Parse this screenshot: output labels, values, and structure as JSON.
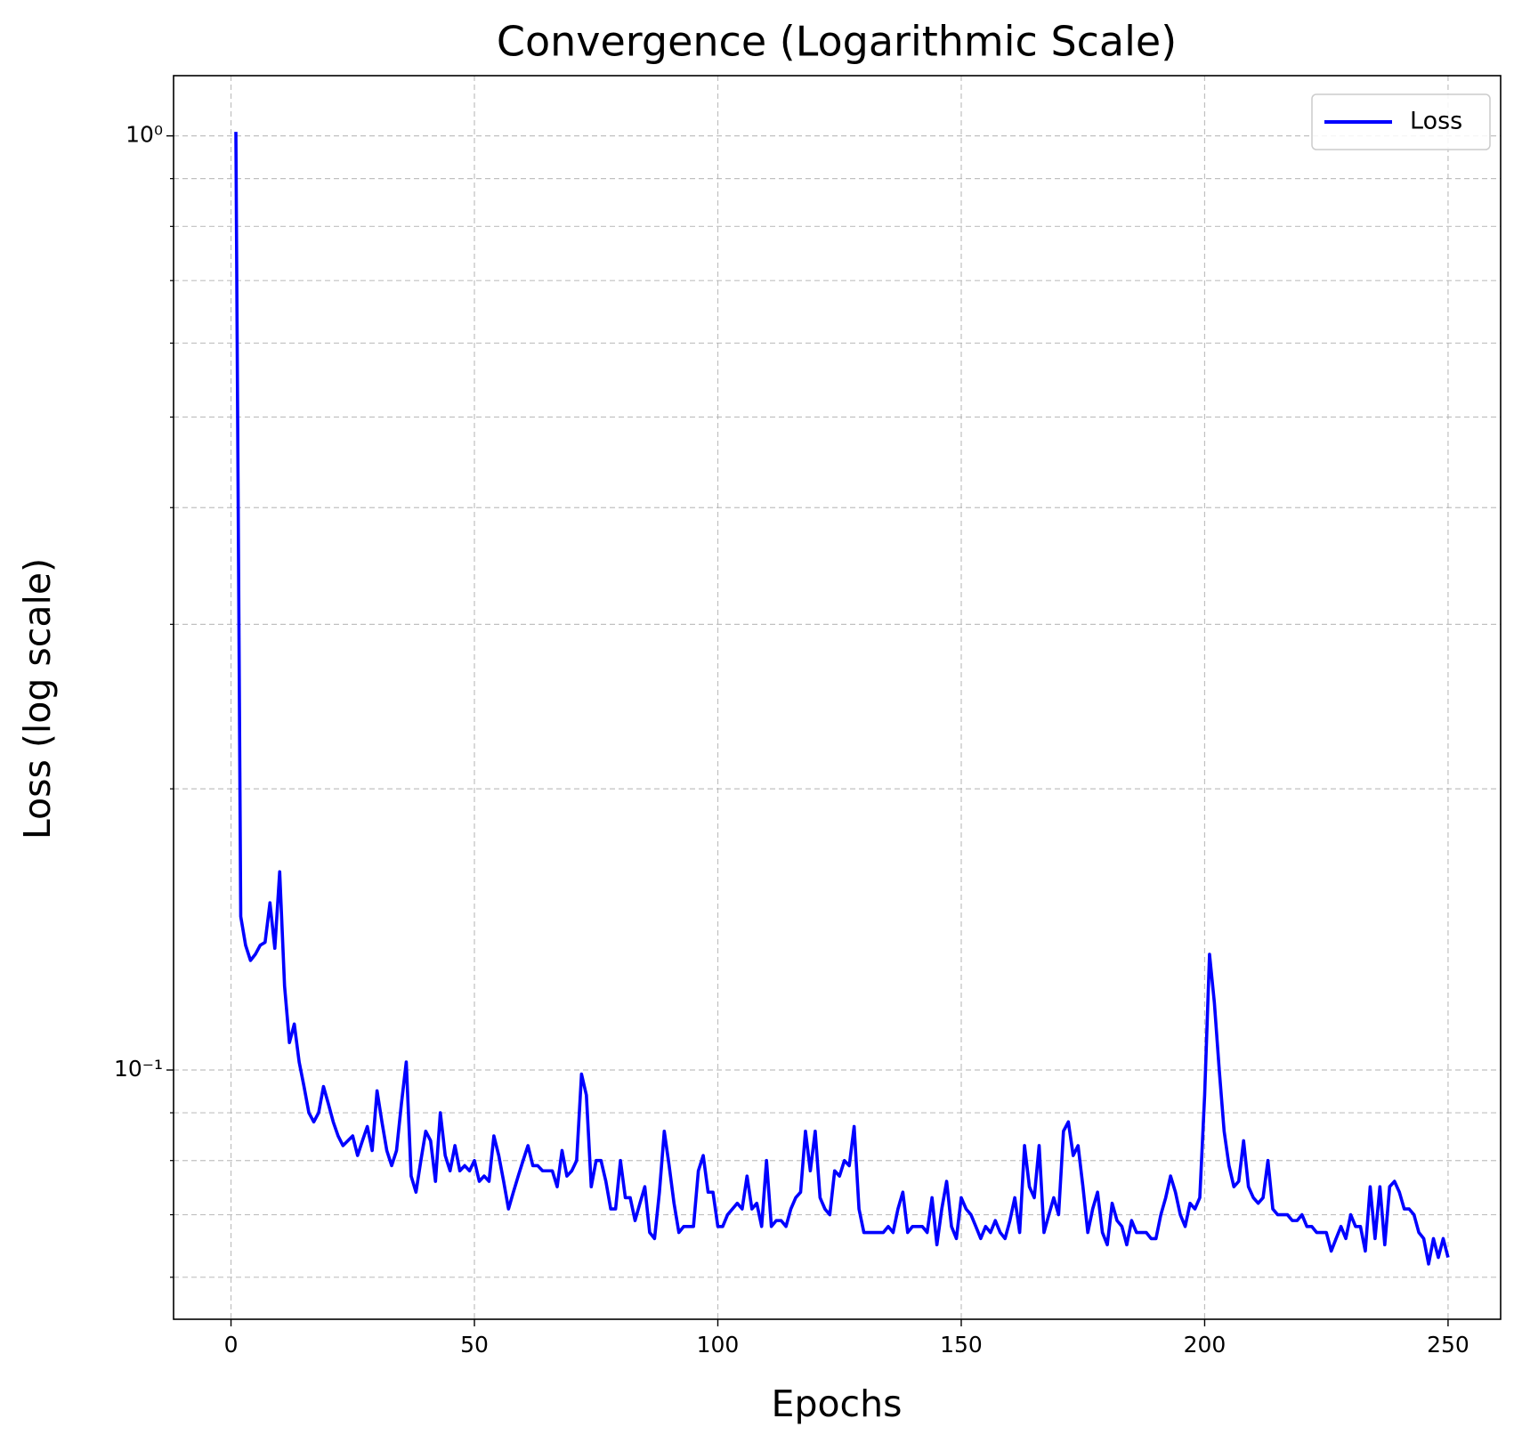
{
  "chart_data": {
    "type": "line",
    "title": "Convergence (Logarithmic Scale)",
    "xlabel": "Epochs",
    "ylabel": "Loss (log scale)",
    "log_y": true,
    "grid": true,
    "legend": "upper right",
    "xlim": [
      -11.8,
      260.8
    ],
    "ylim": [
      0.0541,
      1.16
    ],
    "xticks": [
      0,
      50,
      100,
      150,
      200,
      250
    ],
    "yticks": [
      {
        "value": 1,
        "label": "10⁰"
      },
      {
        "value": 0.1,
        "label": "10⁻¹"
      }
    ],
    "yminorticks": [
      0.06,
      0.07,
      0.08,
      0.09,
      0.2,
      0.3,
      0.4,
      0.5,
      0.6,
      0.7,
      0.8,
      0.9
    ],
    "x": [
      1,
      2,
      3,
      4,
      5,
      6,
      7,
      8,
      9,
      10,
      11,
      12,
      13,
      14,
      15,
      16,
      17,
      18,
      19,
      20,
      21,
      22,
      23,
      24,
      25,
      26,
      27,
      28,
      29,
      30,
      31,
      32,
      33,
      34,
      35,
      36,
      37,
      38,
      39,
      40,
      41,
      42,
      43,
      44,
      45,
      46,
      47,
      48,
      49,
      50,
      51,
      52,
      53,
      54,
      55,
      56,
      57,
      58,
      59,
      60,
      61,
      62,
      63,
      64,
      65,
      66,
      67,
      68,
      69,
      70,
      71,
      72,
      73,
      74,
      75,
      76,
      77,
      78,
      79,
      80,
      81,
      82,
      83,
      84,
      85,
      86,
      87,
      88,
      89,
      90,
      91,
      92,
      93,
      94,
      95,
      96,
      97,
      98,
      99,
      100,
      101,
      102,
      103,
      104,
      105,
      106,
      107,
      108,
      109,
      110,
      111,
      112,
      113,
      114,
      115,
      116,
      117,
      118,
      119,
      120,
      121,
      122,
      123,
      124,
      125,
      126,
      127,
      128,
      129,
      130,
      131,
      132,
      133,
      134,
      135,
      136,
      137,
      138,
      139,
      140,
      141,
      142,
      143,
      144,
      145,
      146,
      147,
      148,
      149,
      150,
      151,
      152,
      153,
      154,
      155,
      156,
      157,
      158,
      159,
      160,
      161,
      162,
      163,
      164,
      165,
      166,
      167,
      168,
      169,
      170,
      171,
      172,
      173,
      174,
      175,
      176,
      177,
      178,
      179,
      180,
      181,
      182,
      183,
      184,
      185,
      186,
      187,
      188,
      189,
      190,
      191,
      192,
      193,
      194,
      195,
      196,
      197,
      198,
      199,
      200,
      201,
      202,
      203,
      204,
      205,
      206,
      207,
      208,
      209,
      210,
      211,
      212,
      213,
      214,
      215,
      216,
      217,
      218,
      219,
      220,
      221,
      222,
      223,
      224,
      225,
      226,
      227,
      228,
      229,
      230,
      231,
      232,
      233,
      234,
      235,
      236,
      237,
      238,
      239,
      240,
      241,
      242,
      243,
      244,
      245,
      246,
      247,
      248,
      249,
      250
    ],
    "series": [
      {
        "name": "Loss",
        "color": "#0000ff",
        "values": [
          1.01,
          0.146,
          0.136,
          0.131,
          0.133,
          0.136,
          0.137,
          0.151,
          0.135,
          0.163,
          0.123,
          0.107,
          0.112,
          0.102,
          0.096,
          0.09,
          0.088,
          0.09,
          0.096,
          0.092,
          0.088,
          0.085,
          0.083,
          0.084,
          0.085,
          0.081,
          0.084,
          0.087,
          0.082,
          0.095,
          0.088,
          0.082,
          0.079,
          0.082,
          0.092,
          0.102,
          0.077,
          0.074,
          0.08,
          0.086,
          0.084,
          0.076,
          0.09,
          0.081,
          0.078,
          0.083,
          0.078,
          0.079,
          0.078,
          0.08,
          0.076,
          0.077,
          0.076,
          0.085,
          0.081,
          0.076,
          0.071,
          0.074,
          0.077,
          0.08,
          0.083,
          0.079,
          0.079,
          0.078,
          0.078,
          0.078,
          0.075,
          0.082,
          0.077,
          0.078,
          0.08,
          0.099,
          0.094,
          0.075,
          0.08,
          0.08,
          0.076,
          0.071,
          0.071,
          0.08,
          0.073,
          0.073,
          0.069,
          0.072,
          0.075,
          0.067,
          0.066,
          0.074,
          0.086,
          0.079,
          0.072,
          0.067,
          0.068,
          0.068,
          0.068,
          0.078,
          0.081,
          0.074,
          0.074,
          0.068,
          0.068,
          0.07,
          0.071,
          0.072,
          0.071,
          0.077,
          0.071,
          0.072,
          0.068,
          0.08,
          0.068,
          0.069,
          0.069,
          0.068,
          0.071,
          0.073,
          0.074,
          0.086,
          0.078,
          0.086,
          0.073,
          0.071,
          0.07,
          0.078,
          0.077,
          0.08,
          0.079,
          0.087,
          0.071,
          0.067,
          0.067,
          0.067,
          0.067,
          0.067,
          0.068,
          0.067,
          0.071,
          0.074,
          0.067,
          0.068,
          0.068,
          0.068,
          0.067,
          0.073,
          0.065,
          0.071,
          0.076,
          0.068,
          0.066,
          0.073,
          0.071,
          0.07,
          0.068,
          0.066,
          0.068,
          0.067,
          0.069,
          0.067,
          0.066,
          0.069,
          0.073,
          0.067,
          0.083,
          0.075,
          0.073,
          0.083,
          0.067,
          0.07,
          0.073,
          0.07,
          0.086,
          0.088,
          0.081,
          0.083,
          0.075,
          0.067,
          0.071,
          0.074,
          0.067,
          0.065,
          0.072,
          0.069,
          0.068,
          0.065,
          0.069,
          0.067,
          0.067,
          0.067,
          0.066,
          0.066,
          0.07,
          0.073,
          0.077,
          0.074,
          0.07,
          0.068,
          0.072,
          0.071,
          0.073,
          0.094,
          0.133,
          0.118,
          0.1,
          0.086,
          0.079,
          0.075,
          0.076,
          0.084,
          0.075,
          0.073,
          0.072,
          0.073,
          0.08,
          0.071,
          0.07,
          0.07,
          0.07,
          0.069,
          0.069,
          0.07,
          0.068,
          0.068,
          0.067,
          0.067,
          0.067,
          0.064,
          0.066,
          0.068,
          0.066,
          0.07,
          0.068,
          0.068,
          0.064,
          0.075,
          0.066,
          0.075,
          0.065,
          0.075,
          0.076,
          0.074,
          0.071,
          0.071,
          0.07,
          0.067,
          0.066,
          0.062,
          0.066,
          0.063,
          0.066,
          0.063
        ]
      }
    ]
  }
}
